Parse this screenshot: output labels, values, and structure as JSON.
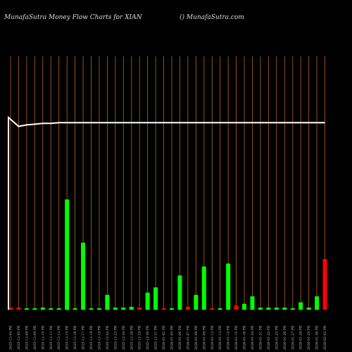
{
  "header": {
    "left_title": "MunafaSutra  Money Flow  Charts for XIAN",
    "right_title": "() MunafaSutra.com"
  },
  "chart_data": {
    "type": "bar",
    "title": "MunafaSutra  Money Flow  Charts for XIAN",
    "categories": [
      "2025-12-04 PR",
      "2025-12-05 PR",
      "2025-12-08 PR",
      "2025-12-09 PR",
      "2025-12-10 PR",
      "2025-12-11 PR",
      "2025-12-12 PR",
      "2025-12-15 PR",
      "2025-12-16 PR",
      "2025-12-17 PR",
      "2025-12-18 PR",
      "2025-12-19 PR",
      "2025-12-22 PR",
      "2025-12-23 PR",
      "2025-12-24 PR",
      "2025-12-26 PR",
      "2025-12-29 PR",
      "2025-12-30 PR",
      "2025-12-31 PR",
      "2026-01-02 PR",
      "2026-01-05 PR",
      "2026-01-06 PR",
      "2026-01-07 PR",
      "2026-01-08 PR",
      "2026-01-09 PR",
      "2026-01-12 PR",
      "2026-01-13 PR",
      "2026-01-14 PR",
      "2026-01-15 PR",
      "2026-01-16 PR",
      "2026-01-20 PR",
      "2026-01-21 PR",
      "2026-01-22 PR",
      "2026-01-23 PR",
      "2026-01-26 PR",
      "2026-01-27 PR",
      "2026-01-28 PR",
      "2026-01-29 PR",
      "2026-01-30 PR",
      "2026-02-02 PR"
    ],
    "series": [
      {
        "values": [
          3,
          3,
          2,
          2,
          3,
          2,
          2,
          148,
          2,
          90,
          2,
          2,
          20,
          3,
          3,
          4,
          3,
          23,
          30,
          2,
          2,
          46,
          4,
          20,
          58,
          2,
          2,
          62,
          6,
          8,
          18,
          3,
          3,
          3,
          3,
          2,
          10,
          3,
          18,
          68
        ],
        "colors": [
          "red",
          "red",
          "green",
          "green",
          "green",
          "green",
          "green",
          "green",
          "green",
          "green",
          "green",
          "green",
          "green",
          "green",
          "green",
          "green",
          "red",
          "green",
          "green",
          "red",
          "green",
          "green",
          "red",
          "green",
          "green",
          "red",
          "green",
          "green",
          "red",
          "green",
          "green",
          "green",
          "green",
          "green",
          "green",
          "green",
          "green",
          "green",
          "green",
          "red"
        ]
      },
      {
        "values": [
          258,
          246,
          248,
          249,
          250,
          250,
          251,
          251,
          251,
          251,
          251,
          251,
          251,
          251,
          251,
          251,
          251,
          251,
          251,
          251,
          251,
          251,
          251,
          251,
          251,
          251,
          251,
          251,
          251,
          251,
          251,
          251,
          251,
          251,
          251,
          251,
          251,
          251,
          251,
          251
        ]
      }
    ],
    "ylim": [
      0,
      340
    ],
    "grid": true,
    "colors": {
      "green": "#00ff00",
      "red": "#ff0000",
      "grid": "#b8651b",
      "line": "#ffffff",
      "background": "#000000"
    }
  }
}
